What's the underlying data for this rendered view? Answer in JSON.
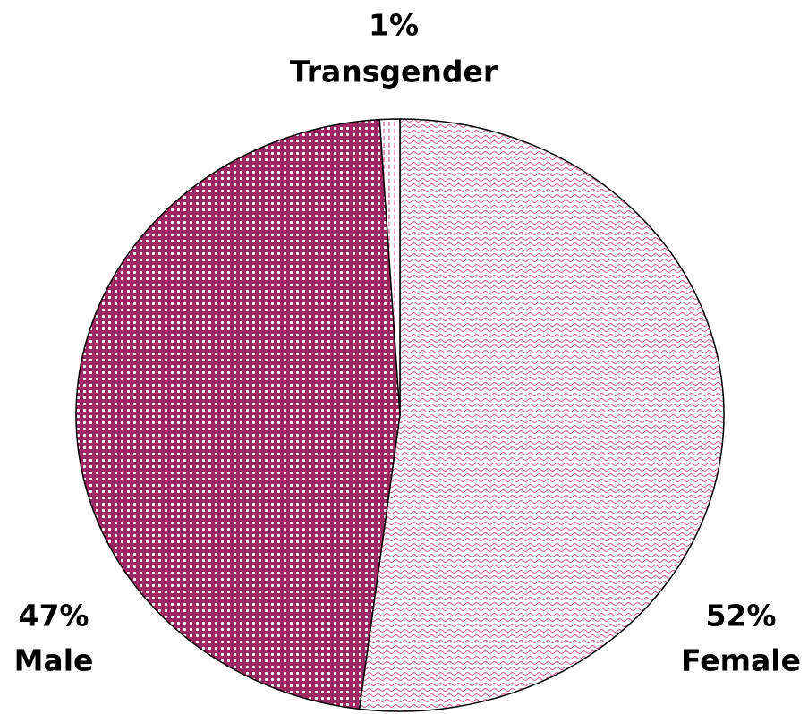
{
  "chart_data": {
    "type": "pie",
    "categories": [
      "Female",
      "Male",
      "Transgender"
    ],
    "values": [
      52,
      47,
      1
    ],
    "value_labels": [
      "52%",
      "47%",
      "1%"
    ],
    "colors": [
      "#cf6f9c",
      "#9c2862",
      "#c45a8e"
    ]
  }
}
